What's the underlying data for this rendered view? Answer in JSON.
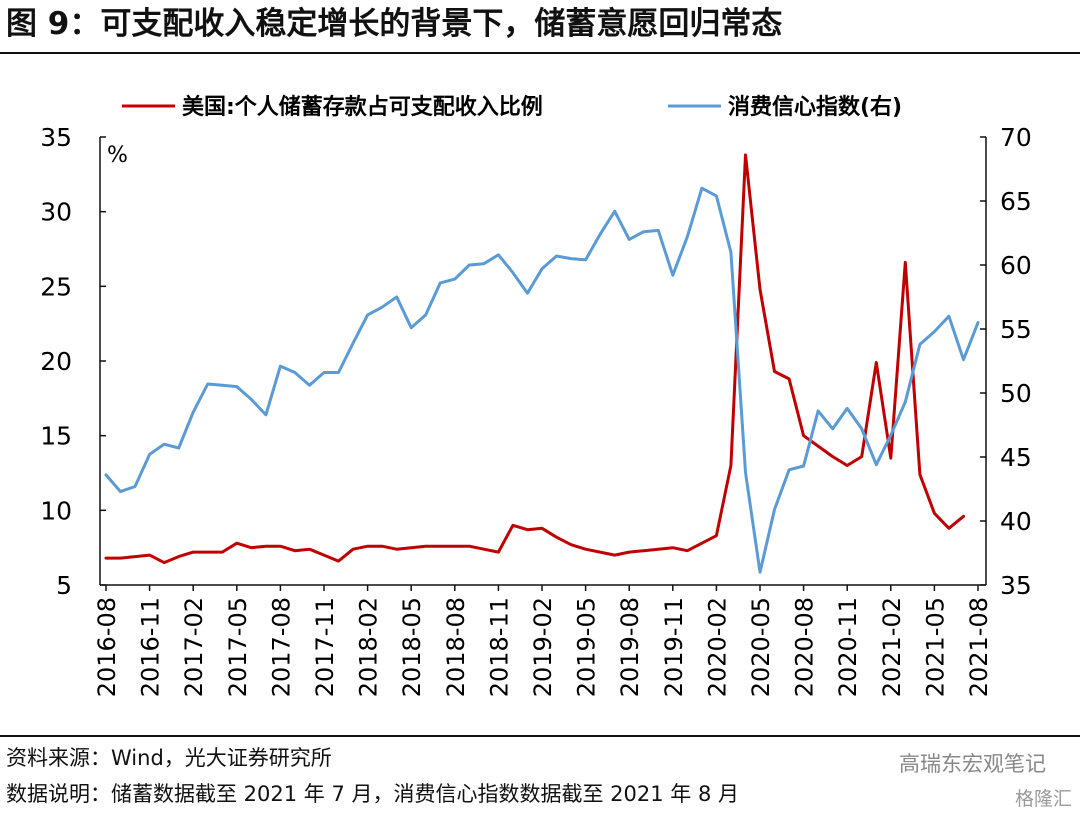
{
  "title": "图 9：可支配收入稳定增长的背景下，储蓄意愿回归常态",
  "footer": {
    "source": "资料来源：Wind，光大证券研究所",
    "note": "数据说明：储蓄数据截至 2021 年 7 月，消费信心指数数据截至 2021 年 8 月"
  },
  "watermark": "高瑞东宏观笔记",
  "watermark2": "格隆汇",
  "chart_data": {
    "type": "line",
    "left_unit": "%",
    "left_ylim": [
      5,
      35
    ],
    "left_ticks": [
      5,
      10,
      15,
      20,
      25,
      30,
      35
    ],
    "right_ylim": [
      35,
      70
    ],
    "right_ticks": [
      35,
      40,
      45,
      50,
      55,
      60,
      65,
      70
    ],
    "x_tick_labels": [
      "2016-08",
      "2016-11",
      "2017-02",
      "2017-05",
      "2017-08",
      "2017-11",
      "2018-02",
      "2018-05",
      "2018-08",
      "2018-11",
      "2019-02",
      "2019-05",
      "2019-08",
      "2019-11",
      "2020-02",
      "2020-05",
      "2020-08",
      "2020-11",
      "2021-02",
      "2021-05",
      "2021-08"
    ],
    "series": [
      {
        "name": "美国:个人储蓄存款占可支配收入比例",
        "axis": "left",
        "color": "#c00000",
        "values": [
          6.8,
          6.8,
          6.9,
          7.0,
          6.5,
          6.9,
          7.2,
          7.2,
          7.2,
          7.8,
          7.5,
          7.6,
          7.6,
          7.3,
          7.4,
          7.0,
          6.6,
          7.4,
          7.6,
          7.6,
          7.4,
          7.5,
          7.6,
          7.6,
          7.6,
          7.6,
          7.4,
          7.2,
          9.0,
          8.7,
          8.8,
          8.2,
          7.7,
          7.4,
          7.2,
          7.0,
          7.2,
          7.3,
          7.4,
          7.5,
          7.3,
          7.8,
          8.3,
          13.0,
          33.8,
          24.8,
          19.3,
          18.8,
          15.0,
          14.3,
          13.6,
          13.0,
          13.6,
          19.9,
          13.5,
          26.6,
          12.4,
          9.8,
          8.8,
          9.6
        ]
      },
      {
        "name": "消费信心指数(右)",
        "axis": "right",
        "color": "#5b9bd5",
        "values": [
          43.6,
          42.3,
          42.7,
          45.2,
          46.0,
          45.7,
          48.5,
          50.7,
          50.6,
          50.5,
          49.5,
          48.3,
          52.1,
          51.6,
          50.6,
          51.6,
          51.6,
          53.9,
          56.1,
          56.7,
          57.5,
          55.1,
          56.1,
          58.6,
          58.9,
          60.0,
          60.1,
          60.8,
          59.4,
          57.8,
          59.7,
          60.7,
          60.5,
          60.4,
          62.4,
          64.2,
          62.0,
          62.6,
          62.7,
          59.2,
          62.2,
          66.0,
          65.4,
          61.0,
          43.8,
          36.0,
          40.9,
          44.0,
          44.3,
          48.6,
          47.2,
          48.8,
          47.2,
          44.4,
          46.7,
          49.3,
          53.8,
          54.8,
          56.0,
          52.6,
          55.5
        ]
      }
    ]
  }
}
